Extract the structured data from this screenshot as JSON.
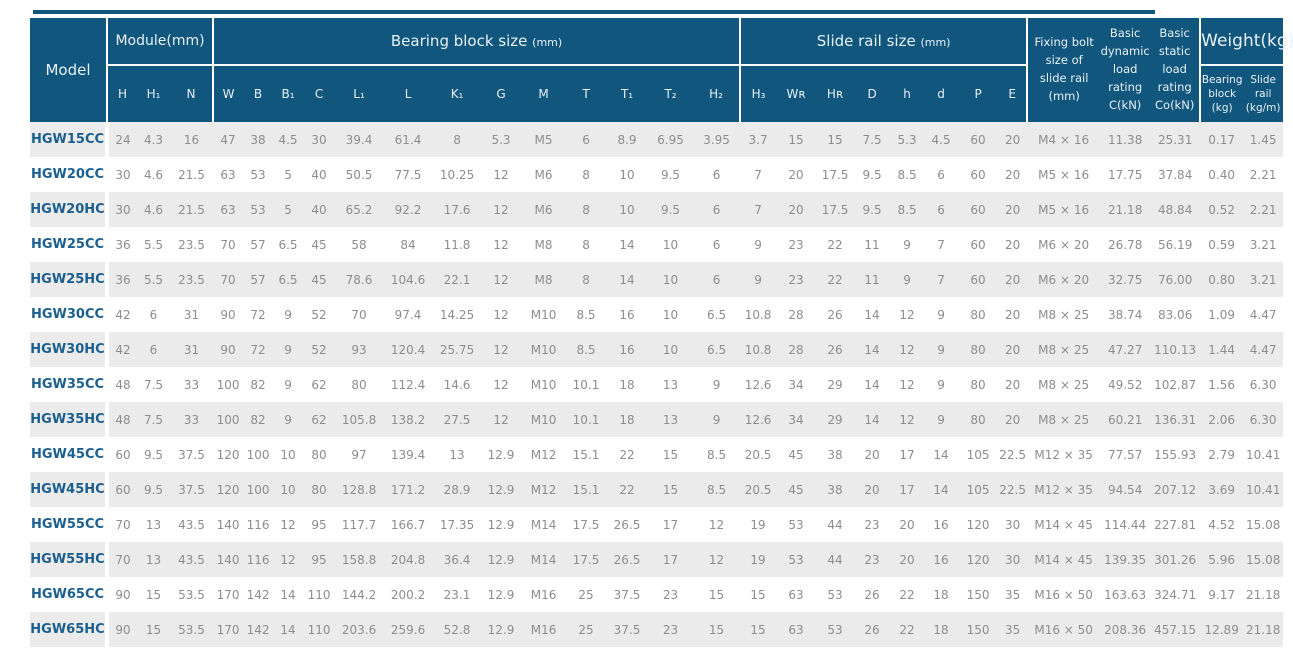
{
  "table": {
    "groups": {
      "model": "Model",
      "module": "Module(mm)",
      "bearing_label": "Bearing block size",
      "bearing_unit": "(mm)",
      "slide_label": "Slide rail size",
      "slide_unit": "(mm)",
      "fixing_bolt": "Fixing bolt\nsize of\nslide rail\n(mm)",
      "dynamic_rating": "Basic\ndynamic\nload rating\nC(kN)",
      "static_rating": "Basic\nstatic\nload rating\nCo(kN)",
      "weight": "Weight(kg)"
    },
    "subheaders": {
      "module": [
        "H",
        "H₁",
        "N"
      ],
      "bearing": [
        "W",
        "B",
        "B₁",
        "C",
        "L₁",
        "L",
        "K₁",
        "G",
        "M",
        "T",
        "T₁",
        "T₂",
        "H₂"
      ],
      "slide": [
        "H₃",
        "Wʀ",
        "Hʀ",
        "D",
        "h",
        "d",
        "P",
        "E"
      ],
      "weight": [
        "Bearing\nblock\n(kg)",
        "Slide\nrail\n(kg/m)"
      ]
    },
    "rows": [
      {
        "model": "HGW15CC",
        "values": [
          "24",
          "4.3",
          "16",
          "47",
          "38",
          "4.5",
          "30",
          "39.4",
          "61.4",
          "8",
          "5.3",
          "M5",
          "6",
          "8.9",
          "6.95",
          "3.95",
          "3.7",
          "15",
          "15",
          "7.5",
          "5.3",
          "4.5",
          "60",
          "20",
          "M4 × 16",
          "11.38",
          "25.31",
          "0.17",
          "1.45"
        ]
      },
      {
        "model": "HGW20CC",
        "values": [
          "30",
          "4.6",
          "21.5",
          "63",
          "53",
          "5",
          "40",
          "50.5",
          "77.5",
          "10.25",
          "12",
          "M6",
          "8",
          "10",
          "9.5",
          "6",
          "7",
          "20",
          "17.5",
          "9.5",
          "8.5",
          "6",
          "60",
          "20",
          "M5 × 16",
          "17.75",
          "37.84",
          "0.40",
          "2.21"
        ]
      },
      {
        "model": "HGW20HC",
        "values": [
          "30",
          "4.6",
          "21.5",
          "63",
          "53",
          "5",
          "40",
          "65.2",
          "92.2",
          "17.6",
          "12",
          "M6",
          "8",
          "10",
          "9.5",
          "6",
          "7",
          "20",
          "17.5",
          "9.5",
          "8.5",
          "6",
          "60",
          "20",
          "M5 × 16",
          "21.18",
          "48.84",
          "0.52",
          "2.21"
        ]
      },
      {
        "model": "HGW25CC",
        "values": [
          "36",
          "5.5",
          "23.5",
          "70",
          "57",
          "6.5",
          "45",
          "58",
          "84",
          "11.8",
          "12",
          "M8",
          "8",
          "14",
          "10",
          "6",
          "9",
          "23",
          "22",
          "11",
          "9",
          "7",
          "60",
          "20",
          "M6 × 20",
          "26.78",
          "56.19",
          "0.59",
          "3.21"
        ]
      },
      {
        "model": "HGW25HC",
        "values": [
          "36",
          "5.5",
          "23.5",
          "70",
          "57",
          "6.5",
          "45",
          "78.6",
          "104.6",
          "22.1",
          "12",
          "M8",
          "8",
          "14",
          "10",
          "6",
          "9",
          "23",
          "22",
          "11",
          "9",
          "7",
          "60",
          "20",
          "M6 × 20",
          "32.75",
          "76.00",
          "0.80",
          "3.21"
        ]
      },
      {
        "model": "HGW30CC",
        "values": [
          "42",
          "6",
          "31",
          "90",
          "72",
          "9",
          "52",
          "70",
          "97.4",
          "14.25",
          "12",
          "M10",
          "8.5",
          "16",
          "10",
          "6.5",
          "10.8",
          "28",
          "26",
          "14",
          "12",
          "9",
          "80",
          "20",
          "M8 × 25",
          "38.74",
          "83.06",
          "1.09",
          "4.47"
        ]
      },
      {
        "model": "HGW30HC",
        "values": [
          "42",
          "6",
          "31",
          "90",
          "72",
          "9",
          "52",
          "93",
          "120.4",
          "25.75",
          "12",
          "M10",
          "8.5",
          "16",
          "10",
          "6.5",
          "10.8",
          "28",
          "26",
          "14",
          "12",
          "9",
          "80",
          "20",
          "M8 × 25",
          "47.27",
          "110.13",
          "1.44",
          "4.47"
        ]
      },
      {
        "model": "HGW35CC",
        "values": [
          "48",
          "7.5",
          "33",
          "100",
          "82",
          "9",
          "62",
          "80",
          "112.4",
          "14.6",
          "12",
          "M10",
          "10.1",
          "18",
          "13",
          "9",
          "12.6",
          "34",
          "29",
          "14",
          "12",
          "9",
          "80",
          "20",
          "M8 × 25",
          "49.52",
          "102.87",
          "1.56",
          "6.30"
        ]
      },
      {
        "model": "HGW35HC",
        "values": [
          "48",
          "7.5",
          "33",
          "100",
          "82",
          "9",
          "62",
          "105.8",
          "138.2",
          "27.5",
          "12",
          "M10",
          "10.1",
          "18",
          "13",
          "9",
          "12.6",
          "34",
          "29",
          "14",
          "12",
          "9",
          "80",
          "20",
          "M8 × 25",
          "60.21",
          "136.31",
          "2.06",
          "6.30"
        ]
      },
      {
        "model": "HGW45CC",
        "values": [
          "60",
          "9.5",
          "37.5",
          "120",
          "100",
          "10",
          "80",
          "97",
          "139.4",
          "13",
          "12.9",
          "M12",
          "15.1",
          "22",
          "15",
          "8.5",
          "20.5",
          "45",
          "38",
          "20",
          "17",
          "14",
          "105",
          "22.5",
          "M12 × 35",
          "77.57",
          "155.93",
          "2.79",
          "10.41"
        ]
      },
      {
        "model": "HGW45HC",
        "values": [
          "60",
          "9.5",
          "37.5",
          "120",
          "100",
          "10",
          "80",
          "128.8",
          "171.2",
          "28.9",
          "12.9",
          "M12",
          "15.1",
          "22",
          "15",
          "8.5",
          "20.5",
          "45",
          "38",
          "20",
          "17",
          "14",
          "105",
          "22.5",
          "M12 × 35",
          "94.54",
          "207.12",
          "3.69",
          "10.41"
        ]
      },
      {
        "model": "HGW55CC",
        "values": [
          "70",
          "13",
          "43.5",
          "140",
          "116",
          "12",
          "95",
          "117.7",
          "166.7",
          "17.35",
          "12.9",
          "M14",
          "17.5",
          "26.5",
          "17",
          "12",
          "19",
          "53",
          "44",
          "23",
          "20",
          "16",
          "120",
          "30",
          "M14 × 45",
          "114.44",
          "227.81",
          "4.52",
          "15.08"
        ]
      },
      {
        "model": "HGW55HC",
        "values": [
          "70",
          "13",
          "43.5",
          "140",
          "116",
          "12",
          "95",
          "158.8",
          "204.8",
          "36.4",
          "12.9",
          "M14",
          "17.5",
          "26.5",
          "17",
          "12",
          "19",
          "53",
          "44",
          "23",
          "20",
          "16",
          "120",
          "30",
          "M14 × 45",
          "139.35",
          "301.26",
          "5.96",
          "15.08"
        ]
      },
      {
        "model": "HGW65CC",
        "values": [
          "90",
          "15",
          "53.5",
          "170",
          "142",
          "14",
          "110",
          "144.2",
          "200.2",
          "23.1",
          "12.9",
          "M16",
          "25",
          "37.5",
          "23",
          "15",
          "15",
          "63",
          "53",
          "26",
          "22",
          "18",
          "150",
          "35",
          "M16 × 50",
          "163.63",
          "324.71",
          "9.17",
          "21.18"
        ]
      },
      {
        "model": "HGW65HC",
        "values": [
          "90",
          "15",
          "53.5",
          "170",
          "142",
          "14",
          "110",
          "203.6",
          "259.6",
          "52.8",
          "12.9",
          "M16",
          "25",
          "37.5",
          "23",
          "15",
          "15",
          "63",
          "53",
          "26",
          "22",
          "18",
          "150",
          "35",
          "M16 × 50",
          "208.36",
          "457.15",
          "12.89",
          "21.18"
        ]
      }
    ]
  },
  "colors": {
    "header_bg": "#11567d",
    "header_text": "#e7f0f6",
    "model_text": "#1b5f90",
    "data_text": "#8d8d8d",
    "stripe": "#ebebeb"
  }
}
